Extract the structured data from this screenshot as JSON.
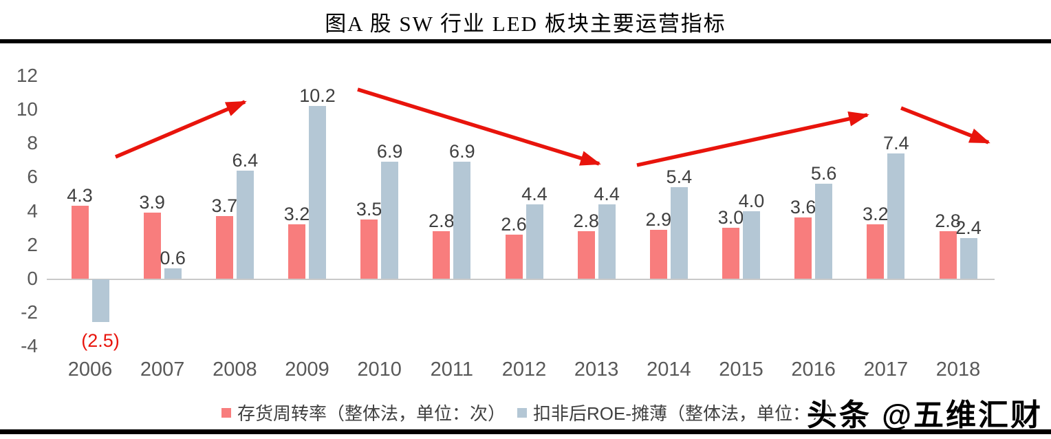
{
  "title": "图A 股 SW 行业 LED 板块主要运营指标",
  "watermark": "头条 @五维汇财",
  "chart_data": {
    "type": "bar",
    "title": "图A 股 SW 行业 LED 板块主要运营指标",
    "categories": [
      "2006",
      "2007",
      "2008",
      "2009",
      "2010",
      "2011",
      "2012",
      "2013",
      "2014",
      "2015",
      "2016",
      "2017",
      "2018"
    ],
    "series": [
      {
        "name": "存货周转率（整体法，单位：次）",
        "color": "#F87D7D",
        "values": [
          4.3,
          3.9,
          3.7,
          3.2,
          3.5,
          2.8,
          2.6,
          2.8,
          2.9,
          3.0,
          3.6,
          3.2,
          2.8
        ]
      },
      {
        "name": "扣非后ROE-摊薄（整体法，单位：%）",
        "color": "#B4C7D5",
        "values": [
          -2.5,
          0.6,
          6.4,
          10.2,
          6.9,
          6.9,
          4.4,
          4.4,
          5.4,
          4.0,
          5.6,
          7.4,
          2.4
        ]
      }
    ],
    "ylim": [
      -4,
      12
    ],
    "yticks": [
      12,
      10,
      8,
      6,
      4,
      2,
      0,
      -2,
      -4
    ],
    "grid": false,
    "legend_position": "bottom",
    "value_labels_shown": true,
    "negative_label_example": "(2.5)",
    "colors": {
      "axis_text": "#595959",
      "value_label": "#3F3F3F",
      "negative_label": "#E8140C",
      "zero_line": "#C9C9C9",
      "arrow": "#E8140C"
    },
    "annotations": {
      "arrow_color": "#E8140C",
      "arrows": [
        {
          "from": [
            168,
            228
          ],
          "to": [
            356,
            148
          ]
        },
        {
          "from": [
            520,
            130
          ],
          "to": [
            871,
            238
          ]
        },
        {
          "from": [
            926,
            240
          ],
          "to": [
            1261,
            167
          ]
        },
        {
          "from": [
            1310,
            157
          ],
          "to": [
            1437,
            207
          ]
        }
      ]
    }
  }
}
